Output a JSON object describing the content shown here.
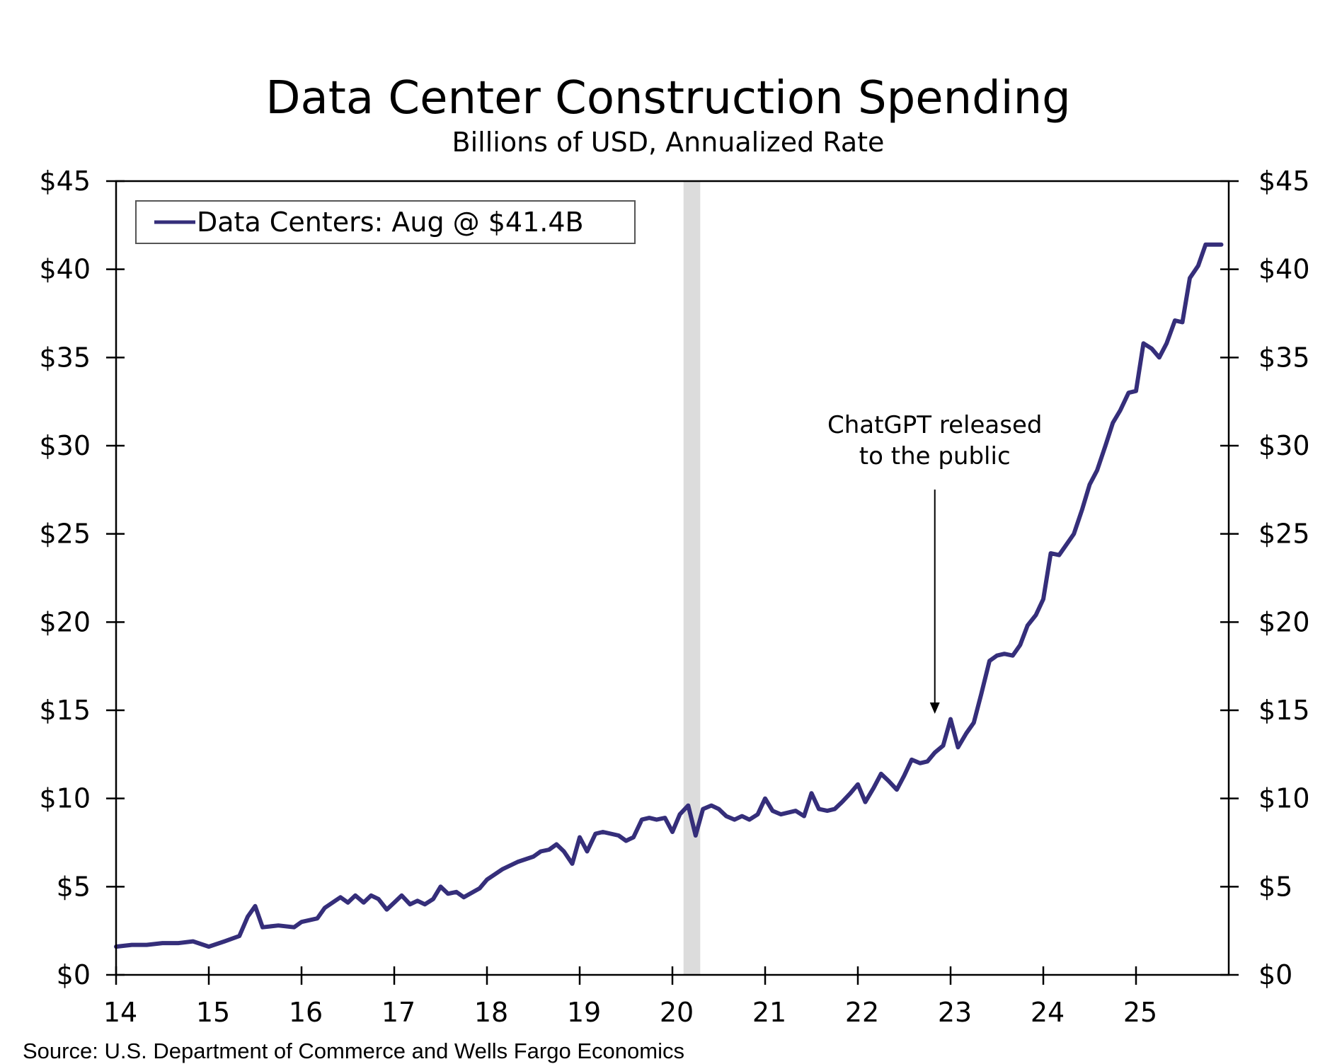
{
  "chart_data": {
    "type": "line",
    "title": "Data Center Construction Spending",
    "subtitle": "Billions of USD, Annualized Rate",
    "source": "Source: U.S. Department of Commerce and Wells Fargo Economics",
    "xlabel": "",
    "ylabel": "",
    "xlim": [
      2014,
      2026
    ],
    "ylim": [
      0,
      45
    ],
    "x_ticks": [
      14,
      15,
      16,
      17,
      18,
      19,
      20,
      21,
      22,
      23,
      24,
      25
    ],
    "x_tick_labels": [
      "14",
      "15",
      "16",
      "17",
      "18",
      "19",
      "20",
      "21",
      "22",
      "23",
      "24",
      "25"
    ],
    "y_ticks": [
      0,
      5,
      10,
      15,
      20,
      25,
      30,
      35,
      40,
      45
    ],
    "y_tick_labels": [
      "$0",
      "$5",
      "$10",
      "$15",
      "$20",
      "$25",
      "$30",
      "$35",
      "$40",
      "$45"
    ],
    "legend": {
      "label": "Data Centers: Aug @ $41.4B",
      "placement": "top-left"
    },
    "shaded_region": {
      "x_start": 2020.12,
      "x_end": 2020.3,
      "color": "#dcdcdc"
    },
    "annotation": {
      "lines": [
        "ChatGPT released",
        "to the public"
      ],
      "x": 2022.83,
      "arrow_to_y": 14.8
    },
    "series": [
      {
        "name": "Data Centers",
        "color": "#352e7a",
        "points": [
          [
            2014.0,
            1.6
          ],
          [
            2014.17,
            1.7
          ],
          [
            2014.33,
            1.7
          ],
          [
            2014.5,
            1.8
          ],
          [
            2014.67,
            1.8
          ],
          [
            2014.83,
            1.9
          ],
          [
            2015.0,
            1.6
          ],
          [
            2015.17,
            1.9
          ],
          [
            2015.33,
            2.2
          ],
          [
            2015.42,
            3.3
          ],
          [
            2015.5,
            3.9
          ],
          [
            2015.58,
            2.7
          ],
          [
            2015.75,
            2.8
          ],
          [
            2015.92,
            2.7
          ],
          [
            2016.0,
            3.0
          ],
          [
            2016.17,
            3.2
          ],
          [
            2016.25,
            3.8
          ],
          [
            2016.42,
            4.4
          ],
          [
            2016.5,
            4.1
          ],
          [
            2016.58,
            4.5
          ],
          [
            2016.67,
            4.1
          ],
          [
            2016.75,
            4.5
          ],
          [
            2016.83,
            4.3
          ],
          [
            2016.92,
            3.7
          ],
          [
            2017.0,
            4.1
          ],
          [
            2017.08,
            4.5
          ],
          [
            2017.17,
            4.0
          ],
          [
            2017.25,
            4.2
          ],
          [
            2017.33,
            4.0
          ],
          [
            2017.42,
            4.3
          ],
          [
            2017.5,
            5.0
          ],
          [
            2017.58,
            4.6
          ],
          [
            2017.67,
            4.7
          ],
          [
            2017.75,
            4.4
          ],
          [
            2017.92,
            4.9
          ],
          [
            2018.0,
            5.4
          ],
          [
            2018.17,
            6.0
          ],
          [
            2018.33,
            6.4
          ],
          [
            2018.5,
            6.7
          ],
          [
            2018.58,
            7.0
          ],
          [
            2018.67,
            7.1
          ],
          [
            2018.75,
            7.4
          ],
          [
            2018.83,
            7.0
          ],
          [
            2018.92,
            6.3
          ],
          [
            2019.0,
            7.8
          ],
          [
            2019.08,
            7.0
          ],
          [
            2019.17,
            8.0
          ],
          [
            2019.25,
            8.1
          ],
          [
            2019.42,
            7.9
          ],
          [
            2019.5,
            7.6
          ],
          [
            2019.58,
            7.8
          ],
          [
            2019.67,
            8.8
          ],
          [
            2019.75,
            8.9
          ],
          [
            2019.83,
            8.8
          ],
          [
            2019.92,
            8.9
          ],
          [
            2020.0,
            8.1
          ],
          [
            2020.08,
            9.1
          ],
          [
            2020.17,
            9.6
          ],
          [
            2020.25,
            7.9
          ],
          [
            2020.33,
            9.4
          ],
          [
            2020.42,
            9.6
          ],
          [
            2020.5,
            9.4
          ],
          [
            2020.58,
            9.0
          ],
          [
            2020.67,
            8.8
          ],
          [
            2020.75,
            9.0
          ],
          [
            2020.83,
            8.8
          ],
          [
            2020.92,
            9.1
          ],
          [
            2021.0,
            10.0
          ],
          [
            2021.08,
            9.3
          ],
          [
            2021.17,
            9.1
          ],
          [
            2021.33,
            9.3
          ],
          [
            2021.42,
            9.0
          ],
          [
            2021.5,
            10.3
          ],
          [
            2021.58,
            9.4
          ],
          [
            2021.67,
            9.3
          ],
          [
            2021.75,
            9.4
          ],
          [
            2021.83,
            9.8
          ],
          [
            2021.92,
            10.3
          ],
          [
            2022.0,
            10.8
          ],
          [
            2022.08,
            9.8
          ],
          [
            2022.17,
            10.6
          ],
          [
            2022.25,
            11.4
          ],
          [
            2022.33,
            11.0
          ],
          [
            2022.42,
            10.5
          ],
          [
            2022.5,
            11.3
          ],
          [
            2022.58,
            12.2
          ],
          [
            2022.67,
            12.0
          ],
          [
            2022.75,
            12.1
          ],
          [
            2022.83,
            12.6
          ],
          [
            2022.92,
            13.0
          ],
          [
            2023.0,
            14.5
          ],
          [
            2023.08,
            12.9
          ],
          [
            2023.17,
            13.7
          ],
          [
            2023.25,
            14.3
          ],
          [
            2023.33,
            15.9
          ],
          [
            2023.42,
            17.8
          ],
          [
            2023.5,
            18.1
          ],
          [
            2023.58,
            18.2
          ],
          [
            2023.67,
            18.1
          ],
          [
            2023.75,
            18.7
          ],
          [
            2023.83,
            19.8
          ],
          [
            2023.92,
            20.4
          ],
          [
            2024.0,
            21.3
          ],
          [
            2024.08,
            23.9
          ],
          [
            2024.17,
            23.8
          ],
          [
            2024.25,
            24.4
          ],
          [
            2024.33,
            25.0
          ],
          [
            2024.42,
            26.4
          ],
          [
            2024.5,
            27.8
          ],
          [
            2024.58,
            28.6
          ],
          [
            2024.67,
            30.0
          ],
          [
            2024.75,
            31.3
          ],
          [
            2024.83,
            32.0
          ],
          [
            2024.92,
            33.0
          ],
          [
            2025.0,
            33.1
          ],
          [
            2025.08,
            35.8
          ],
          [
            2025.17,
            35.5
          ],
          [
            2025.25,
            35.0
          ],
          [
            2025.33,
            35.8
          ],
          [
            2025.42,
            37.1
          ],
          [
            2025.5,
            37.0
          ],
          [
            2025.58,
            39.5
          ],
          [
            2025.67,
            40.2
          ],
          [
            2025.75,
            41.4
          ],
          [
            2025.83,
            41.4
          ],
          [
            2025.92,
            41.4
          ]
        ]
      }
    ]
  }
}
